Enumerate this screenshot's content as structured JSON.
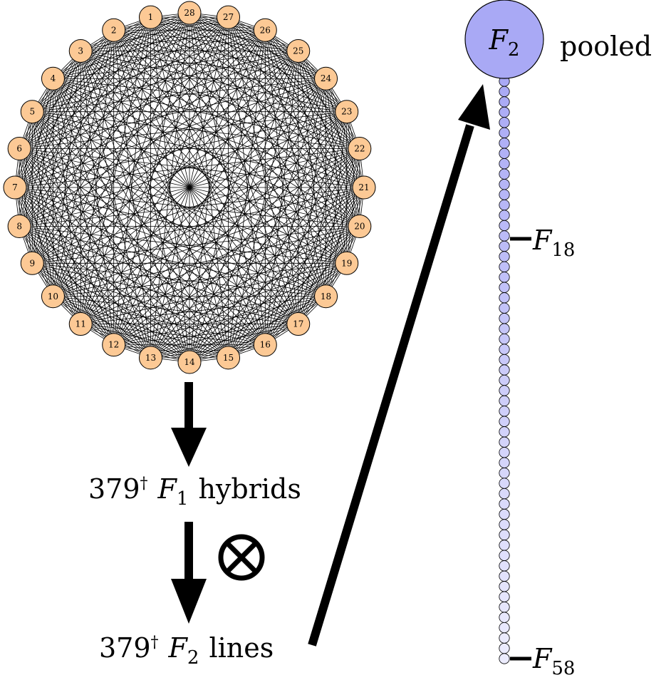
{
  "parents": {
    "labels": [
      "1",
      "2",
      "3",
      "4",
      "5",
      "6",
      "7",
      "8",
      "9",
      "10",
      "11",
      "12",
      "13",
      "14",
      "15",
      "16",
      "17",
      "18",
      "19",
      "20",
      "21",
      "22",
      "23",
      "24",
      "25",
      "26",
      "27",
      "28"
    ],
    "fill": "#fcc995",
    "stroke": "#000000"
  },
  "f1_label": {
    "count": "379",
    "dagger": "†",
    "generation": "F",
    "subscript": "1",
    "word": "hybrids"
  },
  "cross_symbol": "⊗",
  "f2_label": {
    "count": "379",
    "dagger": "†",
    "generation": "F",
    "subscript": "2",
    "word": "lines"
  },
  "pooled": {
    "node_letter": "F",
    "node_subscript": "2",
    "word": "pooled",
    "fill": "#a9a9f5"
  },
  "chain": {
    "generation_count": 57,
    "start_color": "#a9a9f5",
    "end_color": "#ececfd",
    "markers": [
      {
        "letter": "F",
        "subscript": "18",
        "generation_index": 16
      },
      {
        "letter": "F",
        "subscript": "58",
        "generation_index": 56
      }
    ]
  }
}
